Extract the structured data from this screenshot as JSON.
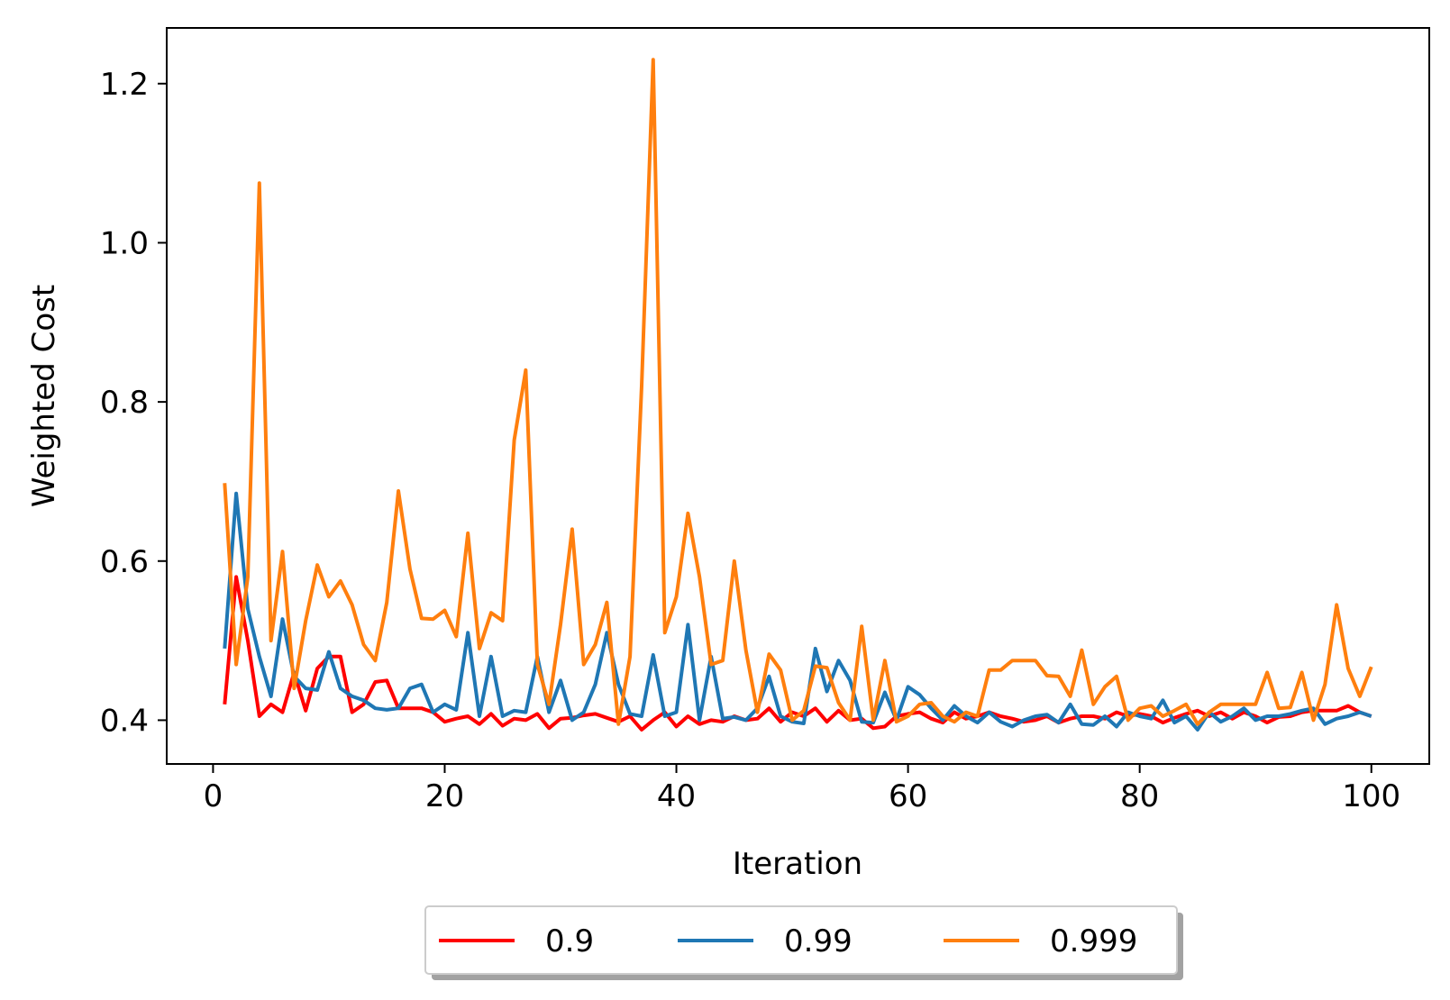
{
  "chart_data": {
    "type": "line",
    "title": "",
    "xlabel": "Iteration",
    "ylabel": "Weighted Cost",
    "xlim": [
      -4,
      105
    ],
    "ylim": [
      0.345,
      1.27
    ],
    "xticks": [
      0,
      20,
      40,
      60,
      80,
      100
    ],
    "xtick_labels": [
      "0",
      "20",
      "40",
      "60",
      "80",
      "100"
    ],
    "yticks": [
      0.4,
      0.6,
      0.8,
      1.0,
      1.2
    ],
    "ytick_labels": [
      "0.4",
      "0.6",
      "0.8",
      "1.0",
      "1.2"
    ],
    "grid": false,
    "legend_position": "bottom-center-outside",
    "legend_columns": 3,
    "x": [
      1,
      2,
      3,
      4,
      5,
      6,
      7,
      8,
      9,
      10,
      11,
      12,
      13,
      14,
      15,
      16,
      17,
      18,
      19,
      20,
      21,
      22,
      23,
      24,
      25,
      26,
      27,
      28,
      29,
      30,
      31,
      32,
      33,
      34,
      35,
      36,
      37,
      38,
      39,
      40,
      41,
      42,
      43,
      44,
      45,
      46,
      47,
      48,
      49,
      50,
      51,
      52,
      53,
      54,
      55,
      56,
      57,
      58,
      59,
      60,
      61,
      62,
      63,
      64,
      65,
      66,
      67,
      68,
      69,
      70,
      71,
      72,
      73,
      74,
      75,
      76,
      77,
      78,
      79,
      80,
      81,
      82,
      83,
      84,
      85,
      86,
      87,
      88,
      89,
      90,
      91,
      92,
      93,
      94,
      95,
      96,
      97,
      98,
      99,
      100
    ],
    "series": [
      {
        "name": "0.9",
        "color": "#ff0000",
        "values": [
          0.42,
          0.58,
          0.5,
          0.405,
          0.42,
          0.41,
          0.46,
          0.412,
          0.465,
          0.48,
          0.48,
          0.41,
          0.42,
          0.448,
          0.45,
          0.415,
          0.415,
          0.415,
          0.41,
          0.398,
          0.402,
          0.405,
          0.395,
          0.408,
          0.393,
          0.402,
          0.4,
          0.408,
          0.39,
          0.402,
          0.403,
          0.406,
          0.408,
          0.403,
          0.398,
          0.405,
          0.388,
          0.4,
          0.41,
          0.392,
          0.405,
          0.395,
          0.4,
          0.398,
          0.405,
          0.4,
          0.402,
          0.415,
          0.398,
          0.41,
          0.405,
          0.415,
          0.398,
          0.412,
          0.4,
          0.402,
          0.39,
          0.392,
          0.405,
          0.408,
          0.41,
          0.402,
          0.397,
          0.41,
          0.402,
          0.405,
          0.41,
          0.405,
          0.402,
          0.398,
          0.4,
          0.405,
          0.397,
          0.402,
          0.405,
          0.405,
          0.402,
          0.41,
          0.405,
          0.408,
          0.405,
          0.397,
          0.403,
          0.408,
          0.412,
          0.405,
          0.41,
          0.402,
          0.41,
          0.405,
          0.397,
          0.404,
          0.405,
          0.41,
          0.412,
          0.412,
          0.412,
          0.418,
          0.41,
          0.405
        ]
      },
      {
        "name": "0.99",
        "color": "#1f77b4",
        "values": [
          0.49,
          0.685,
          0.54,
          0.48,
          0.43,
          0.527,
          0.455,
          0.44,
          0.438,
          0.486,
          0.44,
          0.43,
          0.425,
          0.415,
          0.413,
          0.415,
          0.44,
          0.445,
          0.41,
          0.42,
          0.413,
          0.51,
          0.405,
          0.48,
          0.405,
          0.412,
          0.41,
          0.48,
          0.41,
          0.45,
          0.4,
          0.41,
          0.445,
          0.51,
          0.445,
          0.408,
          0.405,
          0.482,
          0.405,
          0.41,
          0.52,
          0.4,
          0.48,
          0.402,
          0.404,
          0.4,
          0.415,
          0.455,
          0.405,
          0.398,
          0.396,
          0.49,
          0.436,
          0.475,
          0.45,
          0.398,
          0.397,
          0.435,
          0.4,
          0.442,
          0.432,
          0.415,
          0.4,
          0.418,
          0.405,
          0.397,
          0.41,
          0.398,
          0.392,
          0.4,
          0.405,
          0.407,
          0.397,
          0.42,
          0.395,
          0.394,
          0.405,
          0.392,
          0.41,
          0.405,
          0.402,
          0.425,
          0.397,
          0.405,
          0.388,
          0.41,
          0.398,
          0.405,
          0.415,
          0.4,
          0.405,
          0.405,
          0.408,
          0.412,
          0.415,
          0.395,
          0.402,
          0.405,
          0.41,
          0.405
        ]
      },
      {
        "name": "0.999",
        "color": "#ff7f0e",
        "values": [
          0.698,
          0.47,
          0.58,
          1.075,
          0.5,
          0.612,
          0.44,
          0.525,
          0.595,
          0.555,
          0.575,
          0.545,
          0.495,
          0.475,
          0.548,
          0.688,
          0.59,
          0.528,
          0.527,
          0.538,
          0.505,
          0.635,
          0.49,
          0.535,
          0.525,
          0.752,
          0.84,
          0.47,
          0.42,
          0.52,
          0.64,
          0.47,
          0.495,
          0.548,
          0.395,
          0.48,
          0.82,
          1.23,
          0.51,
          0.555,
          0.66,
          0.58,
          0.47,
          0.475,
          0.6,
          0.488,
          0.41,
          0.483,
          0.463,
          0.4,
          0.412,
          0.468,
          0.466,
          0.422,
          0.4,
          0.518,
          0.4,
          0.475,
          0.398,
          0.405,
          0.42,
          0.422,
          0.405,
          0.398,
          0.41,
          0.405,
          0.463,
          0.463,
          0.475,
          0.475,
          0.475,
          0.456,
          0.455,
          0.43,
          0.488,
          0.42,
          0.442,
          0.455,
          0.4,
          0.415,
          0.418,
          0.405,
          0.412,
          0.42,
          0.395,
          0.41,
          0.42,
          0.42,
          0.42,
          0.42,
          0.46,
          0.415,
          0.416,
          0.46,
          0.4,
          0.445,
          0.545,
          0.465,
          0.43,
          0.467
        ]
      }
    ]
  }
}
